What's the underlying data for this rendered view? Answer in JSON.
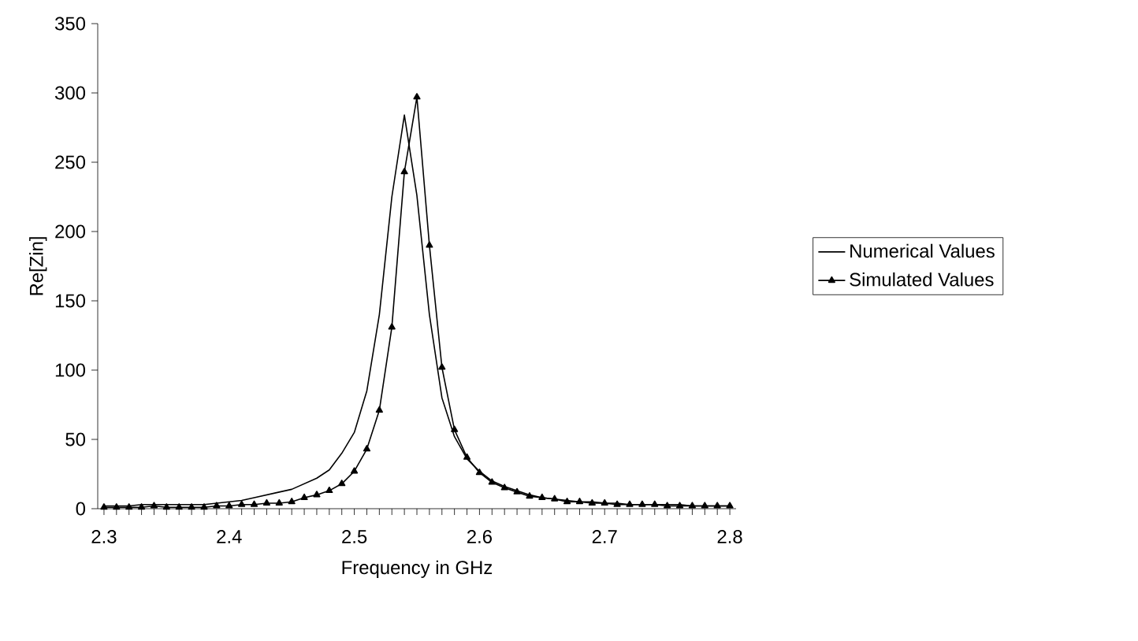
{
  "chart_data": {
    "type": "line",
    "xlabel": "Frequency in GHz",
    "ylabel": "Re[Zin]",
    "xlim": [
      2.295,
      2.805
    ],
    "xticks": [
      2.3,
      2.4,
      2.5,
      2.6,
      2.7,
      2.8
    ],
    "ylim": [
      0,
      350
    ],
    "yticks": [
      0,
      50,
      100,
      150,
      200,
      250,
      300,
      350
    ],
    "grid": false,
    "legend": "right",
    "x": [
      2.3,
      2.31,
      2.32,
      2.33,
      2.34,
      2.35,
      2.36,
      2.37,
      2.38,
      2.39,
      2.4,
      2.41,
      2.42,
      2.43,
      2.44,
      2.45,
      2.46,
      2.47,
      2.48,
      2.49,
      2.5,
      2.51,
      2.52,
      2.53,
      2.54,
      2.55,
      2.56,
      2.57,
      2.58,
      2.59,
      2.6,
      2.61,
      2.62,
      2.63,
      2.64,
      2.65,
      2.66,
      2.67,
      2.68,
      2.69,
      2.7,
      2.71,
      2.72,
      2.73,
      2.74,
      2.75,
      2.76,
      2.77,
      2.78,
      2.79,
      2.8
    ],
    "series": [
      {
        "name": "Numerical Values",
        "color": "#000000",
        "marker": "none",
        "values": [
          2,
          2,
          2,
          3,
          3,
          3,
          3,
          3,
          3,
          4,
          5,
          6,
          8,
          10,
          12,
          14,
          18,
          22,
          28,
          40,
          55,
          85,
          140,
          225,
          284,
          226,
          140,
          80,
          52,
          36,
          27,
          20,
          16,
          13,
          10,
          8,
          7,
          6,
          5,
          5,
          4,
          4,
          3,
          3,
          3,
          3,
          3,
          2,
          2,
          2,
          2
        ]
      },
      {
        "name": "Simulated Values",
        "color": "#000000",
        "marker": "triangle",
        "values": [
          1,
          1,
          1,
          1,
          2,
          1,
          1,
          1,
          1,
          2,
          2,
          3,
          3,
          4,
          4,
          5,
          8,
          10,
          13,
          18,
          27,
          43,
          71,
          131,
          243,
          297,
          190,
          102,
          57,
          37,
          26,
          19,
          15,
          12,
          9,
          8,
          7,
          5,
          5,
          4,
          4,
          3,
          3,
          3,
          3,
          2,
          2,
          2,
          2,
          2,
          2
        ]
      }
    ]
  }
}
